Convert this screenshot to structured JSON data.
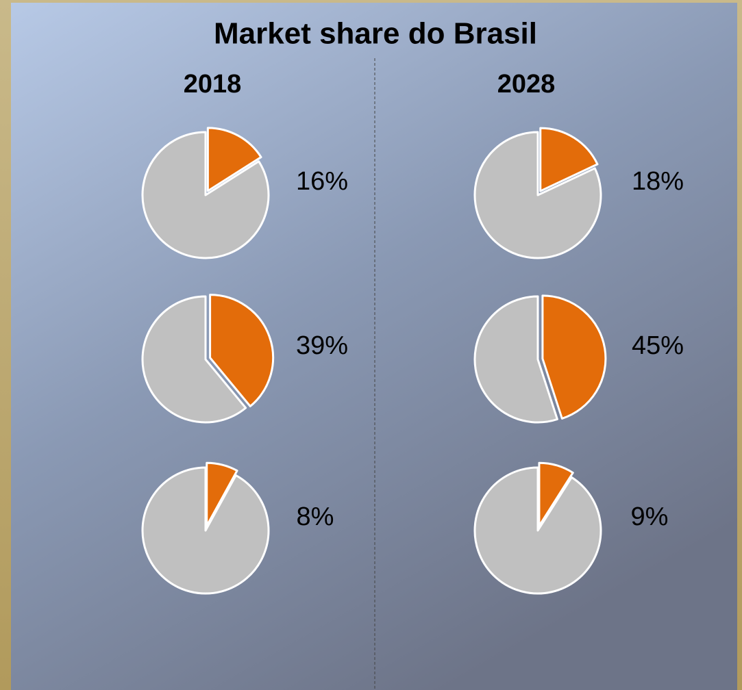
{
  "title": "Market share do Brasil",
  "columns": [
    "2018",
    "2028"
  ],
  "chart_data": [
    {
      "type": "pie",
      "values": [
        16,
        84
      ],
      "value_labels": [
        "16%",
        null
      ],
      "colors": [
        "#e36c0a",
        "#c0c0c0"
      ]
    },
    {
      "type": "pie",
      "values": [
        39,
        61
      ],
      "value_labels": [
        "39%",
        null
      ],
      "colors": [
        "#e36c0a",
        "#c0c0c0"
      ]
    },
    {
      "type": "pie",
      "values": [
        8,
        92
      ],
      "value_labels": [
        "8%",
        null
      ],
      "colors": [
        "#e36c0a",
        "#c0c0c0"
      ]
    },
    {
      "type": "pie",
      "values": [
        18,
        82
      ],
      "value_labels": [
        "18%",
        null
      ],
      "colors": [
        "#e36c0a",
        "#c0c0c0"
      ]
    },
    {
      "type": "pie",
      "values": [
        45,
        55
      ],
      "value_labels": [
        "45%",
        null
      ],
      "colors": [
        "#e36c0a",
        "#c0c0c0"
      ]
    },
    {
      "type": "pie",
      "values": [
        9,
        91
      ],
      "value_labels": [
        "9%",
        null
      ],
      "colors": [
        "#e36c0a",
        "#c0c0c0"
      ]
    }
  ]
}
